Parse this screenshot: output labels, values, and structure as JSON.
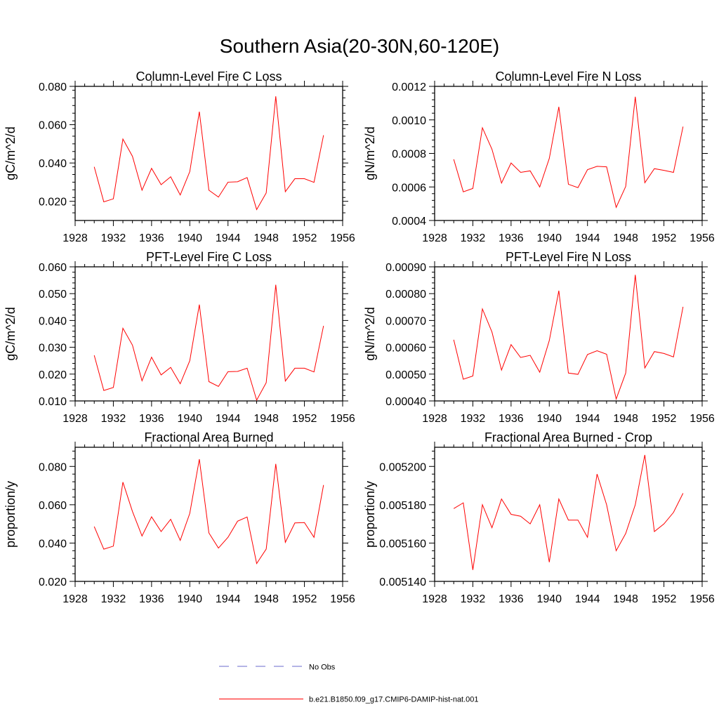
{
  "title": "Southern Asia(20-30N,60-120E)",
  "legend": {
    "obs_label": "No Obs",
    "obs_color": "#6a6acd",
    "model_label": "b.e21.B1850.f09_g17.CMIP6-DAMIP-hist-nat.001",
    "model_color": "#ff0000"
  },
  "chart_data": [
    {
      "type": "line",
      "title": "Column-Level Fire C Loss",
      "ylabel": "gC/m^2/d",
      "xlim": [
        1928,
        1956
      ],
      "ylim": [
        0.01,
        0.08
      ],
      "xticks": [
        "1928",
        "1932",
        "1936",
        "1940",
        "1944",
        "1948",
        "1952",
        "1956"
      ],
      "yticks": [
        "0.020",
        "0.040",
        "0.060",
        "0.080"
      ],
      "x": [
        1930,
        1931,
        1932,
        1933,
        1934,
        1935,
        1936,
        1937,
        1938,
        1939,
        1940,
        1941,
        1942,
        1943,
        1944,
        1945,
        1946,
        1947,
        1948,
        1949,
        1950,
        1951,
        1952,
        1953,
        1954
      ],
      "series": [
        {
          "name": "b.e21.B1850.f09_g17.CMIP6-DAMIP-hist-nat.001",
          "values": [
            0.038,
            0.0197,
            0.0213,
            0.0525,
            0.0435,
            0.0258,
            0.0372,
            0.0287,
            0.0328,
            0.0233,
            0.0355,
            0.0668,
            0.0258,
            0.0222,
            0.03,
            0.0302,
            0.0324,
            0.0157,
            0.0244,
            0.0748,
            0.025,
            0.0318,
            0.0318,
            0.0299,
            0.0545
          ]
        }
      ]
    },
    {
      "type": "line",
      "title": "Column-Level Fire N Loss",
      "ylabel": "gN/m^2/d",
      "xlim": [
        1928,
        1956
      ],
      "ylim": [
        0.0004,
        0.0012
      ],
      "xticks": [
        "1928",
        "1932",
        "1936",
        "1940",
        "1944",
        "1948",
        "1952",
        "1956"
      ],
      "yticks": [
        "0.0004",
        "0.0006",
        "0.0008",
        "0.0010",
        "0.0012"
      ],
      "x": [
        1930,
        1931,
        1932,
        1933,
        1934,
        1935,
        1936,
        1937,
        1938,
        1939,
        1940,
        1941,
        1942,
        1943,
        1944,
        1945,
        1946,
        1947,
        1948,
        1949,
        1950,
        1951,
        1952,
        1953,
        1954
      ],
      "series": [
        {
          "name": "b.e21.B1850.f09_g17.CMIP6-DAMIP-hist-nat.001",
          "values": [
            0.000765,
            0.000571,
            0.000591,
            0.000953,
            0.000825,
            0.000623,
            0.000743,
            0.000687,
            0.000696,
            0.0006,
            0.00077,
            0.001078,
            0.000616,
            0.000596,
            0.000703,
            0.000723,
            0.00072,
            0.000478,
            0.000603,
            0.001138,
            0.000625,
            0.000709,
            0.000699,
            0.000687,
            0.00096
          ]
        }
      ]
    },
    {
      "type": "line",
      "title": "PFT-Level Fire C Loss",
      "ylabel": "gC/m^2/d",
      "xlim": [
        1928,
        1956
      ],
      "ylim": [
        0.01,
        0.06
      ],
      "xticks": [
        "1928",
        "1932",
        "1936",
        "1940",
        "1944",
        "1948",
        "1952",
        "1956"
      ],
      "yticks": [
        "0.010",
        "0.020",
        "0.030",
        "0.040",
        "0.050",
        "0.060"
      ],
      "x": [
        1930,
        1931,
        1932,
        1933,
        1934,
        1935,
        1936,
        1937,
        1938,
        1939,
        1940,
        1941,
        1942,
        1943,
        1944,
        1945,
        1946,
        1947,
        1948,
        1949,
        1950,
        1951,
        1952,
        1953,
        1954
      ],
      "series": [
        {
          "name": "b.e21.B1850.f09_g17.CMIP6-DAMIP-hist-nat.001",
          "values": [
            0.027,
            0.0139,
            0.015,
            0.0371,
            0.0308,
            0.0175,
            0.0263,
            0.0197,
            0.0225,
            0.0164,
            0.025,
            0.0459,
            0.0172,
            0.0154,
            0.0209,
            0.021,
            0.0222,
            0.0103,
            0.0168,
            0.0533,
            0.0174,
            0.0222,
            0.0222,
            0.0208,
            0.038
          ]
        }
      ]
    },
    {
      "type": "line",
      "title": "PFT-Level Fire N Loss",
      "ylabel": "gN/m^2/d",
      "xlim": [
        1928,
        1956
      ],
      "ylim": [
        0.0004,
        0.0009
      ],
      "xticks": [
        "1928",
        "1932",
        "1936",
        "1940",
        "1944",
        "1948",
        "1952",
        "1956"
      ],
      "yticks": [
        "0.00040",
        "0.00050",
        "0.00060",
        "0.00070",
        "0.00080",
        "0.00090"
      ],
      "x": [
        1930,
        1931,
        1932,
        1933,
        1934,
        1935,
        1936,
        1937,
        1938,
        1939,
        1940,
        1941,
        1942,
        1943,
        1944,
        1945,
        1946,
        1947,
        1948,
        1949,
        1950,
        1951,
        1952,
        1953,
        1954
      ],
      "series": [
        {
          "name": "b.e21.B1850.f09_g17.CMIP6-DAMIP-hist-nat.001",
          "values": [
            0.000628,
            0.000481,
            0.000493,
            0.000743,
            0.000657,
            0.000515,
            0.00061,
            0.000562,
            0.00057,
            0.000507,
            0.000625,
            0.000811,
            0.000504,
            0.000499,
            0.000573,
            0.000587,
            0.000574,
            0.000407,
            0.000504,
            0.00087,
            0.000523,
            0.000584,
            0.000577,
            0.000564,
            0.000751
          ]
        }
      ]
    },
    {
      "type": "line",
      "title": "Fractional Area Burned",
      "ylabel": "proportion/y",
      "xlim": [
        1928,
        1956
      ],
      "ylim": [
        0.02,
        0.09
      ],
      "xticks": [
        "1928",
        "1932",
        "1936",
        "1940",
        "1944",
        "1948",
        "1952",
        "1956"
      ],
      "yticks": [
        "0.020",
        "0.040",
        "0.060",
        "0.080"
      ],
      "x": [
        1930,
        1931,
        1932,
        1933,
        1934,
        1935,
        1936,
        1937,
        1938,
        1939,
        1940,
        1941,
        1942,
        1943,
        1944,
        1945,
        1946,
        1947,
        1948,
        1949,
        1950,
        1951,
        1952,
        1953,
        1954
      ],
      "series": [
        {
          "name": "b.e21.B1850.f09_g17.CMIP6-DAMIP-hist-nat.001",
          "values": [
            0.0486,
            0.0368,
            0.0384,
            0.0718,
            0.0565,
            0.0437,
            0.0537,
            0.046,
            0.0524,
            0.0414,
            0.0555,
            0.0838,
            0.0453,
            0.0374,
            0.043,
            0.0514,
            0.0536,
            0.0293,
            0.0369,
            0.0813,
            0.0404,
            0.0505,
            0.0507,
            0.043,
            0.0703
          ]
        }
      ]
    },
    {
      "type": "line",
      "title": "Fractional Area Burned - Crop",
      "ylabel": "proportion/y",
      "xlim": [
        1928,
        1956
      ],
      "ylim": [
        0.00514,
        0.00521
      ],
      "xticks": [
        "1928",
        "1932",
        "1936",
        "1940",
        "1944",
        "1948",
        "1952",
        "1956"
      ],
      "yticks": [
        "0.005140",
        "0.005160",
        "0.005180",
        "0.005200"
      ],
      "x": [
        1930,
        1931,
        1932,
        1933,
        1934,
        1935,
        1936,
        1937,
        1938,
        1939,
        1940,
        1941,
        1942,
        1943,
        1944,
        1945,
        1946,
        1947,
        1948,
        1949,
        1950,
        1951,
        1952,
        1953,
        1954
      ],
      "series": [
        {
          "name": "b.e21.B1850.f09_g17.CMIP6-DAMIP-hist-nat.001",
          "values": [
            0.005178,
            0.005181,
            0.005146,
            0.00518,
            0.005168,
            0.005183,
            0.005175,
            0.005174,
            0.00517,
            0.00518,
            0.00515,
            0.005183,
            0.005172,
            0.005172,
            0.005163,
            0.005196,
            0.00518,
            0.005156,
            0.005165,
            0.00518,
            0.005206,
            0.005166,
            0.00517,
            0.005176,
            0.005186
          ]
        }
      ]
    }
  ]
}
